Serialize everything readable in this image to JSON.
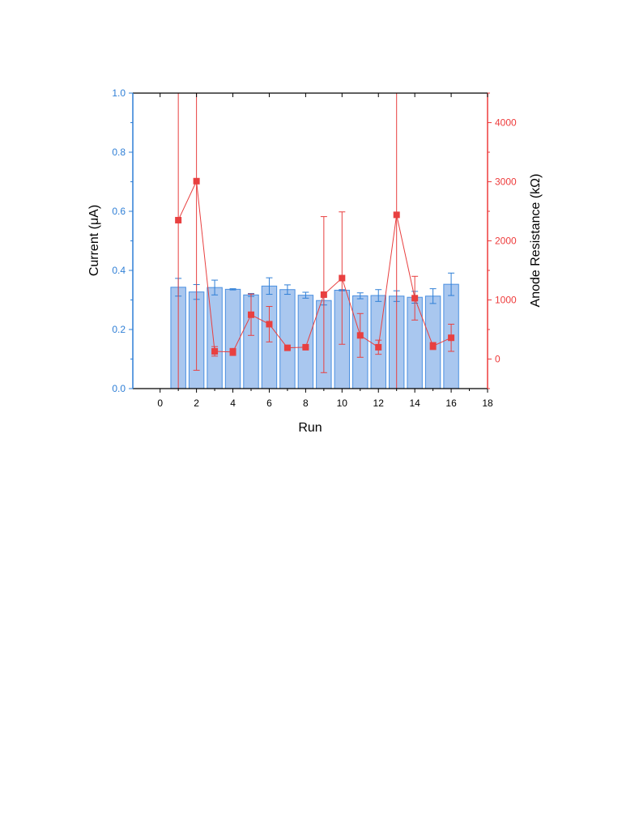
{
  "chart_data": {
    "type": "bar",
    "xlabel": "Run",
    "ylabel_left": "Current (μA)",
    "ylabel_right": "Anode Resistance (kΩ)",
    "xlim": [
      -1.5,
      18
    ],
    "x_ticks": [
      0,
      2,
      4,
      6,
      8,
      10,
      12,
      14,
      16,
      18
    ],
    "ylim_left": [
      0,
      1.0
    ],
    "y_ticks_left": [
      "0.0",
      "0.2",
      "0.4",
      "0.6",
      "0.8",
      "1.0"
    ],
    "ylim_right": [
      -500,
      4500
    ],
    "y_ticks_right": [
      "0",
      "1000",
      "2000",
      "3000",
      "4000"
    ],
    "grid": false,
    "colors": {
      "left_axis": "#2f7fd6",
      "right_axis": "#ee3b3b",
      "bar_fill": "#a9c7ef",
      "bar_edge": "#4a8fe0",
      "line": "#e84040"
    },
    "series": [
      {
        "axis": "left",
        "kind": "bar",
        "x": [
          1,
          2,
          3,
          4,
          5,
          6,
          7,
          8,
          9,
          10,
          11,
          12,
          13,
          14,
          15,
          16
        ],
        "values": [
          0.343,
          0.327,
          0.342,
          0.336,
          0.317,
          0.347,
          0.335,
          0.316,
          0.298,
          0.333,
          0.314,
          0.315,
          0.313,
          0.309,
          0.313,
          0.353
        ],
        "errors": [
          0.03,
          0.025,
          0.025,
          0.002,
          0.005,
          0.028,
          0.016,
          0.01,
          0.015,
          0.002,
          0.01,
          0.02,
          0.018,
          0.02,
          0.025,
          0.038
        ]
      },
      {
        "axis": "right",
        "kind": "line",
        "x": [
          1,
          2,
          3,
          4,
          5,
          6,
          7,
          8,
          9,
          10,
          11,
          12,
          13,
          14,
          15,
          16
        ],
        "values": [
          2350,
          3010,
          130,
          120,
          750,
          590,
          190,
          200,
          1090,
          1370,
          400,
          200,
          2440,
          1030,
          220,
          360
        ],
        "errors": [
          3600,
          3200,
          80,
          60,
          350,
          300,
          20,
          20,
          1320,
          1120,
          370,
          120,
          3400,
          370,
          60,
          230
        ]
      }
    ]
  }
}
